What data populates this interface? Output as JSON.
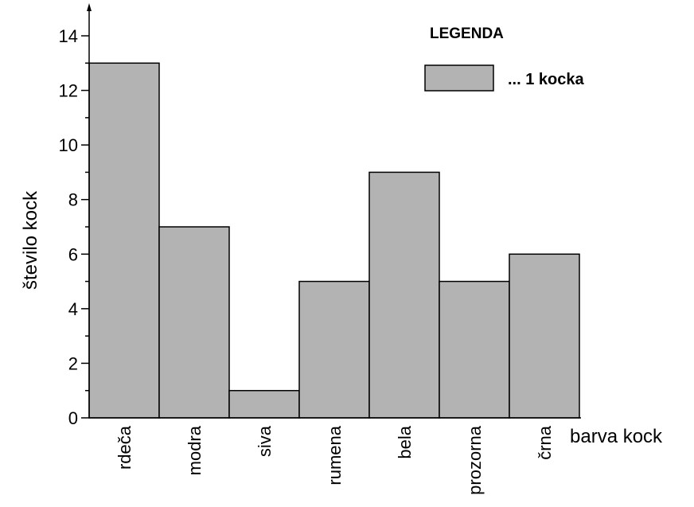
{
  "chart_data": {
    "type": "bar",
    "categories": [
      "rdeča",
      "modra",
      "siva",
      "rumena",
      "bela",
      "prozorna",
      "črna"
    ],
    "values": [
      13,
      7,
      1,
      5,
      9,
      5,
      6
    ],
    "xlabel": "barva kock",
    "ylabel": "število kock",
    "ylim": [
      0,
      14
    ],
    "yticks": [
      "0",
      "2",
      "4",
      "6",
      "8",
      "10",
      "12",
      "14"
    ],
    "grid": false,
    "bar_color": "#b3b3b3",
    "legend": {
      "title": "LEGENDA",
      "entry_label": "... 1 kocka",
      "position": "top-right"
    }
  }
}
